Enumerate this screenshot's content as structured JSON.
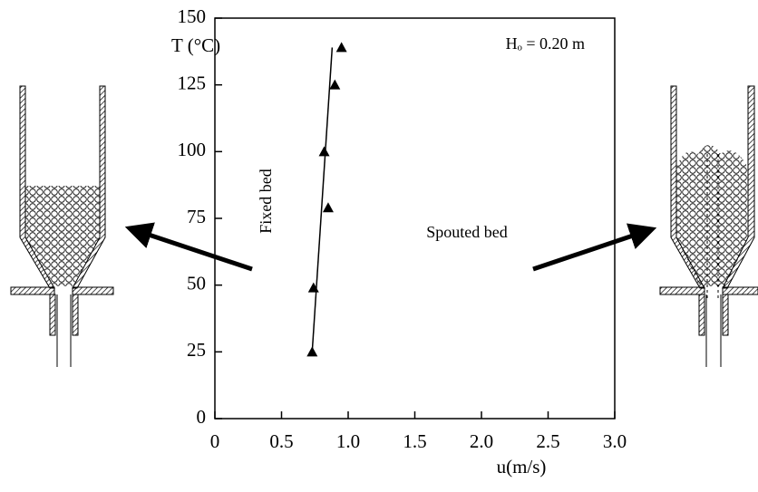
{
  "chart_data": {
    "type": "scatter",
    "y_label": "T (°C)",
    "x_label": "u(m/s)",
    "annotations": [
      "Hₒ = 0.20  m",
      "Fixed bed",
      "Spouted bed"
    ],
    "series": [
      {
        "marker": "triangle",
        "color": "#000000",
        "x": [
          0.95,
          0.9,
          0.82,
          0.85,
          0.74,
          0.73
        ],
        "values": [
          139,
          125,
          100,
          79,
          49,
          25
        ]
      },
      {
        "marker": "none",
        "color": "#000000",
        "x": [
          0.73,
          0.88
        ],
        "values": [
          25,
          139
        ]
      }
    ],
    "xlim": [
      0,
      3
    ],
    "ylim": [
      0,
      150
    ],
    "xticks": [
      0,
      0.5,
      {
        "value": 1,
        "label": "1.0"
      },
      1.5,
      {
        "value": 2,
        "label": "2.0"
      },
      2.5,
      {
        "value": 3,
        "label": "3.0"
      }
    ],
    "yticks": [
      0,
      25,
      50,
      75,
      100,
      125,
      150
    ]
  }
}
